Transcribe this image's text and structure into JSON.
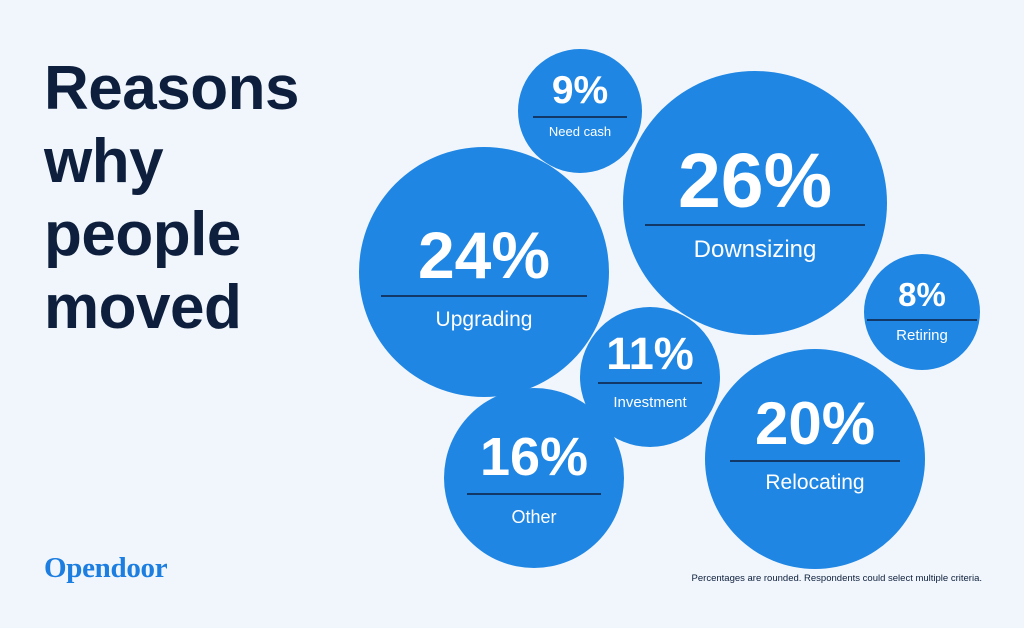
{
  "title_lines": [
    "Reasons",
    "why",
    "people",
    "moved"
  ],
  "logo": "Opendoor",
  "footnote": "Percentages are rounded. Respondents could select multiple criteria.",
  "colors": {
    "background": "#f1f6fc",
    "bubble": "#1f86e3",
    "title": "#0d1f3c",
    "brand": "#1c7ee0"
  },
  "chart_data": {
    "type": "bubble",
    "unit": "%",
    "items": [
      {
        "label": "Need cash",
        "value": 9,
        "display": "9%"
      },
      {
        "label": "Downsizing",
        "value": 26,
        "display": "26%"
      },
      {
        "label": "Upgrading",
        "value": 24,
        "display": "24%"
      },
      {
        "label": "Retiring",
        "value": 8,
        "display": "8%"
      },
      {
        "label": "Investment",
        "value": 11,
        "display": "11%"
      },
      {
        "label": "Relocating",
        "value": 20,
        "display": "20%"
      },
      {
        "label": "Other",
        "value": 16,
        "display": "16%"
      }
    ]
  }
}
